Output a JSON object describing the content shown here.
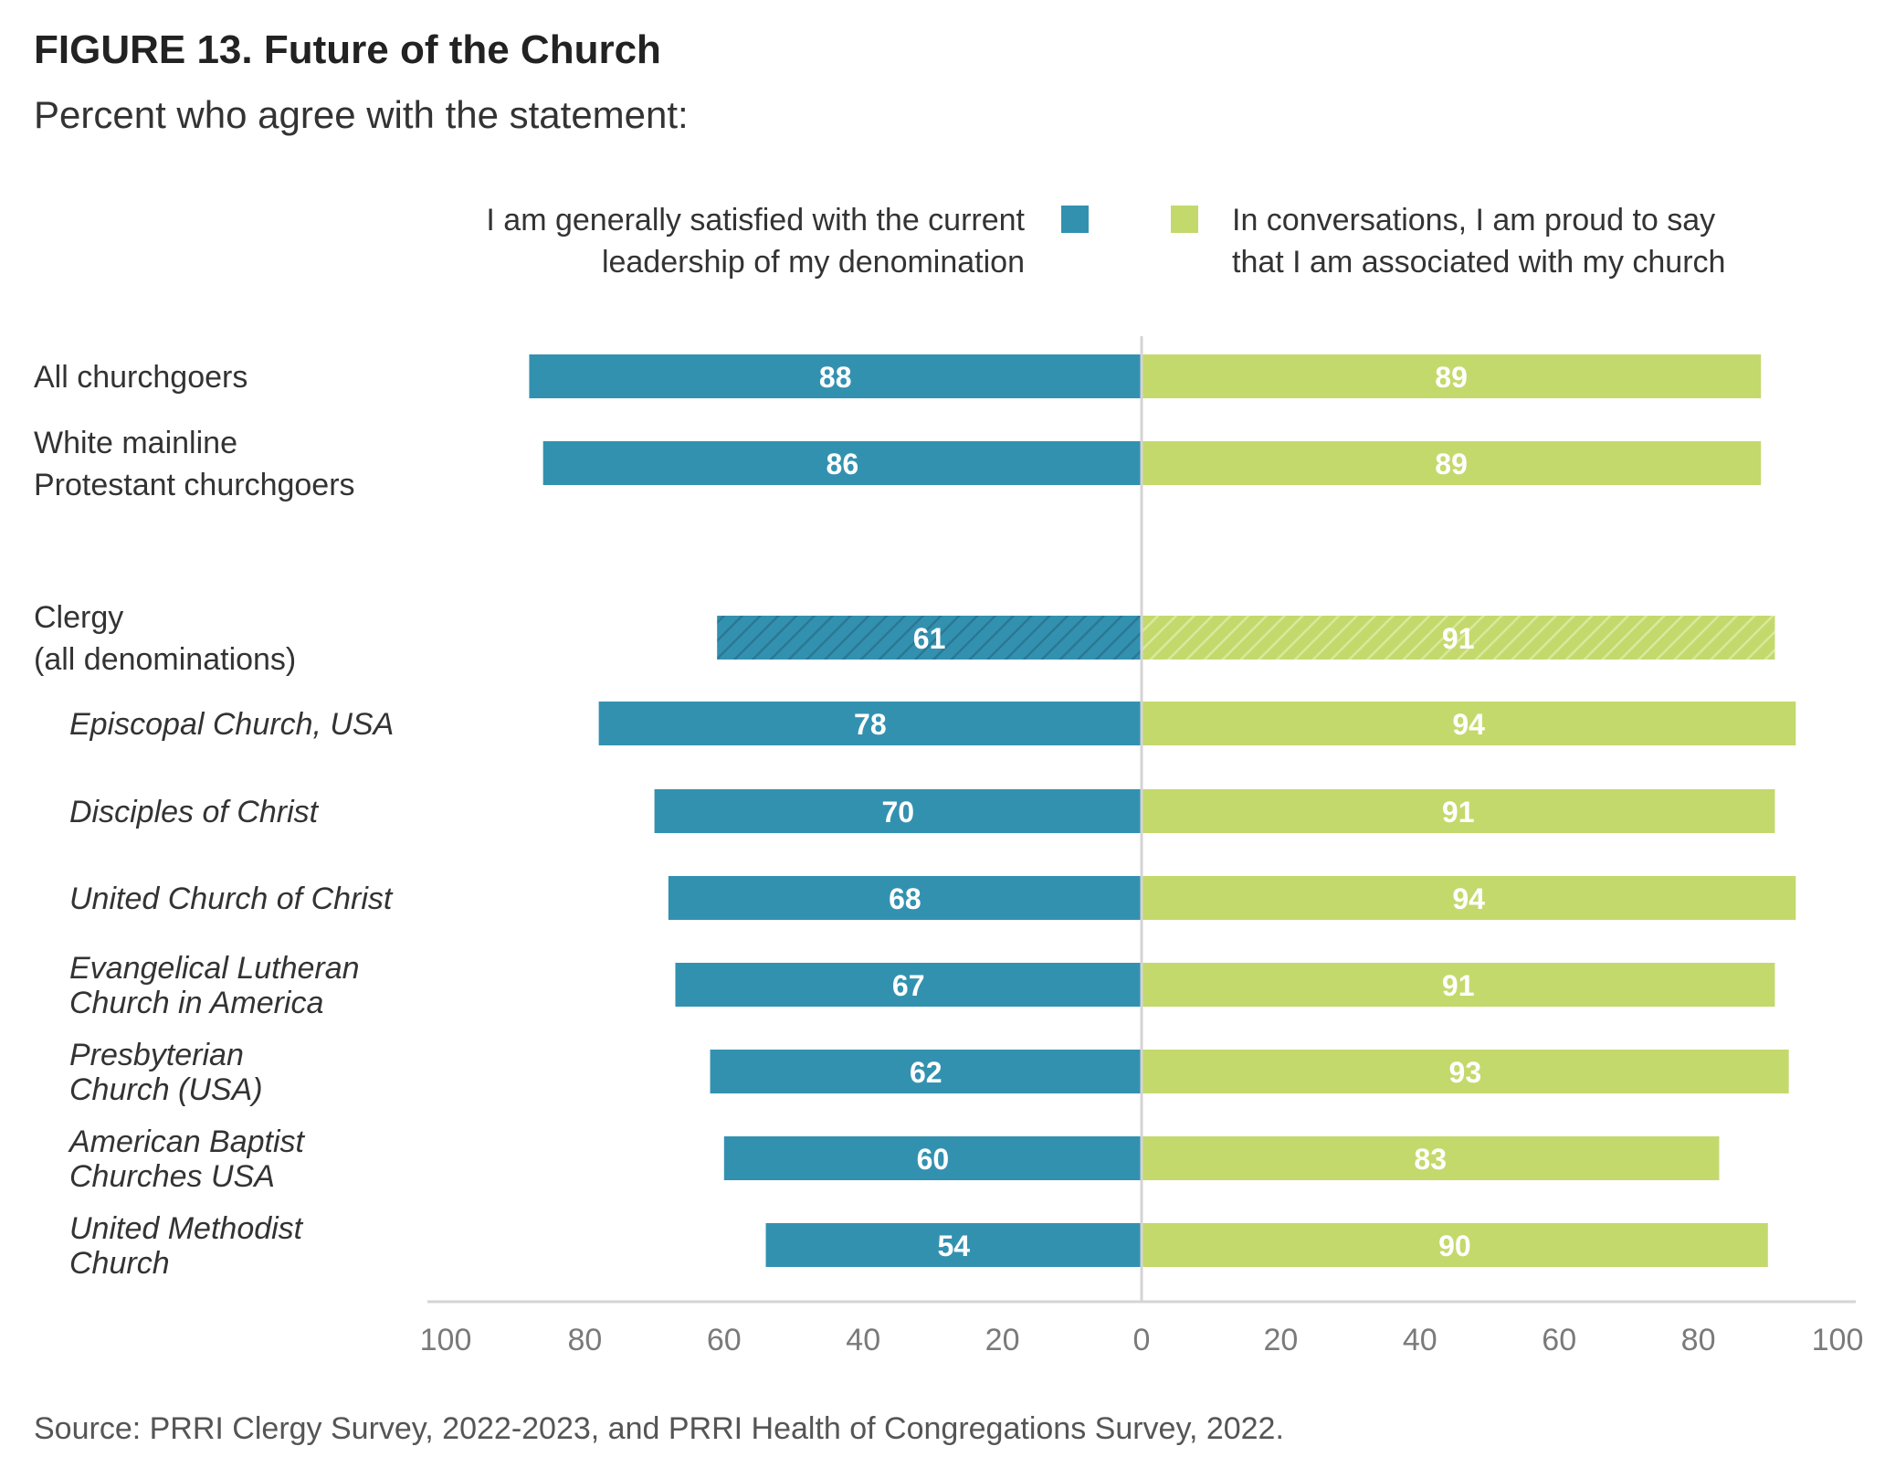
{
  "title": "FIGURE 13.  Future of the Church",
  "subtitle": "Percent who agree with the statement:",
  "source": "Source: PRRI Clergy Survey, 2022-2023, and PRRI Health of Congregations Survey, 2022.",
  "colors": {
    "left": "#3391b0",
    "right": "#c3d96c",
    "axis": "#d4d4d4",
    "tick_text": "#7a7a7a"
  },
  "chart_data": {
    "type": "bar",
    "orientation": "horizontal-diverging",
    "x_ticks_left": [
      "100",
      "80",
      "60",
      "40",
      "20"
    ],
    "x_ticks_right": [
      "0",
      "20",
      "40",
      "60",
      "80",
      "100"
    ],
    "xlim": [
      0,
      100
    ],
    "legend_placement": "top",
    "categories": [
      {
        "label_lines": [
          "All churchgoers"
        ],
        "italic": false,
        "indent": false,
        "hatched": false
      },
      {
        "label_lines": [
          "White mainline",
          "Protestant churchgoers"
        ],
        "italic": false,
        "indent": false,
        "hatched": false
      },
      {
        "label_lines": [
          "Clergy",
          "(all denominations)"
        ],
        "italic": false,
        "indent": false,
        "hatched": true
      },
      {
        "label_lines": [
          "Episcopal Church, USA"
        ],
        "italic": true,
        "indent": true,
        "hatched": false
      },
      {
        "label_lines": [
          "Disciples of Christ"
        ],
        "italic": true,
        "indent": true,
        "hatched": false
      },
      {
        "label_lines": [
          "United Church of Christ"
        ],
        "italic": true,
        "indent": true,
        "hatched": false
      },
      {
        "label_lines": [
          "Evangelical Lutheran",
          "Church in America"
        ],
        "italic": true,
        "indent": true,
        "hatched": false
      },
      {
        "label_lines": [
          "Presbyterian",
          "Church (USA)"
        ],
        "italic": true,
        "indent": true,
        "hatched": false
      },
      {
        "label_lines": [
          "American Baptist",
          "Churches USA"
        ],
        "italic": true,
        "indent": true,
        "hatched": false
      },
      {
        "label_lines": [
          "United Methodist",
          "Church"
        ],
        "italic": true,
        "indent": true,
        "hatched": false
      }
    ],
    "series": [
      {
        "name_lines": [
          "I am generally satisfied with the current",
          "leadership of my denomination"
        ],
        "values": [
          88,
          86,
          61,
          78,
          70,
          68,
          67,
          62,
          60,
          54
        ]
      },
      {
        "name_lines": [
          "In conversations, I am proud to say",
          "that I am associated with my church"
        ],
        "values": [
          89,
          89,
          91,
          94,
          91,
          94,
          91,
          93,
          83,
          90
        ]
      }
    ]
  }
}
